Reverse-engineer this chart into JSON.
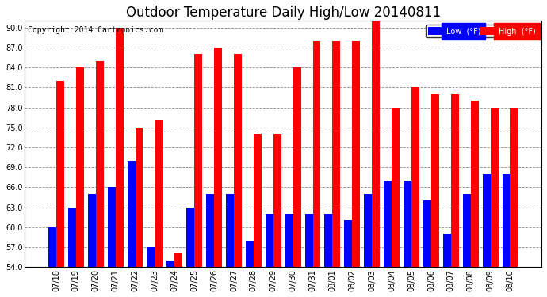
{
  "title": "Outdoor Temperature Daily High/Low 20140811",
  "copyright": "Copyright 2014 Cartronics.com",
  "legend_low": "Low  (°F)",
  "legend_high": "High  (°F)",
  "dates": [
    "07/18",
    "07/19",
    "07/20",
    "07/21",
    "07/22",
    "07/23",
    "07/24",
    "07/25",
    "07/26",
    "07/27",
    "07/28",
    "07/29",
    "07/30",
    "07/31",
    "08/01",
    "08/02",
    "08/03",
    "08/04",
    "08/05",
    "08/06",
    "08/07",
    "08/08",
    "08/09",
    "08/10"
  ],
  "highs": [
    82,
    84,
    85,
    90,
    75,
    76,
    56,
    86,
    87,
    86,
    74,
    74,
    84,
    88,
    88,
    88,
    91,
    78,
    81,
    80,
    80,
    79,
    78,
    78
  ],
  "lows": [
    60,
    63,
    65,
    66,
    70,
    57,
    55,
    63,
    65,
    65,
    58,
    62,
    62,
    62,
    62,
    61,
    65,
    67,
    67,
    64,
    59,
    65,
    68,
    68
  ],
  "high_color": "#FF0000",
  "low_color": "#0000FF",
  "background_color": "#FFFFFF",
  "plot_bg_color": "#FFFFFF",
  "grid_color": "#888888",
  "ylim_min": 54,
  "ylim_max": 91,
  "yticks": [
    54,
    57,
    60,
    63,
    66,
    69,
    72,
    75,
    78,
    81,
    84,
    87,
    90
  ],
  "bar_width": 0.4,
  "title_fontsize": 12,
  "tick_fontsize": 7,
  "copyright_fontsize": 7
}
